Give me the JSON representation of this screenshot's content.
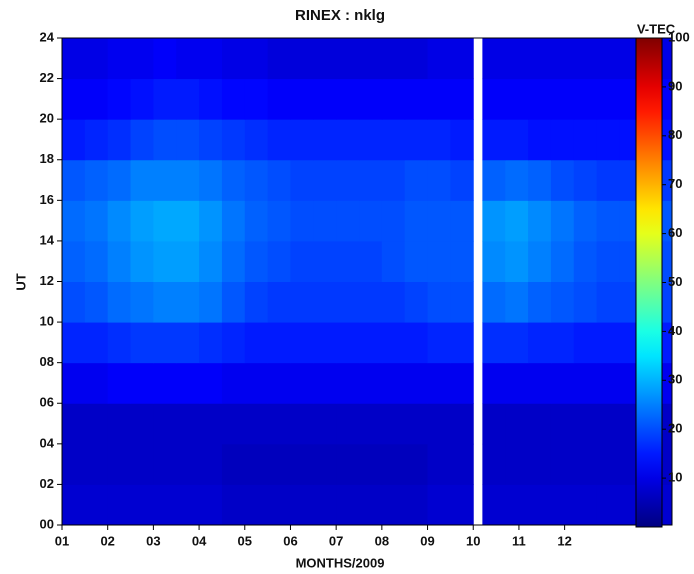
{
  "chart_data": {
    "type": "heatmap",
    "title": "RINEX : nklg",
    "x_label": "MONTHS/2009",
    "y_label": "UT",
    "colorbar_label": "V-TEC",
    "x_bins": [
      1,
      1.5,
      2,
      2.5,
      3,
      3.5,
      4,
      4.5,
      5,
      5.5,
      6,
      6.5,
      7,
      7.5,
      8,
      8.5,
      9,
      9.5,
      10,
      10.2,
      10.7,
      11.2,
      11.7,
      12.2,
      12.7,
      13.2,
      13.7,
      14.35
    ],
    "y_bins": [
      0,
      2,
      4,
      6,
      8,
      10,
      12,
      14,
      16,
      18,
      20,
      22,
      24
    ],
    "values": [
      [
        8,
        8,
        8,
        8,
        8,
        8,
        8,
        7,
        7,
        7,
        7,
        7,
        7,
        7,
        7,
        7,
        8,
        8,
        null,
        8,
        8,
        8,
        8,
        8,
        8,
        8,
        8
      ],
      [
        7,
        7,
        7,
        7,
        7,
        7,
        7,
        6,
        6,
        6,
        6,
        6,
        6,
        6,
        6,
        6,
        7,
        7,
        null,
        7,
        7,
        7,
        7,
        7,
        7,
        7,
        7
      ],
      [
        7,
        7,
        7,
        7,
        7,
        7,
        7,
        7,
        7,
        7,
        7,
        7,
        7,
        7,
        7,
        7,
        7,
        7,
        null,
        7,
        7,
        7,
        7,
        7,
        7,
        7,
        7
      ],
      [
        11,
        11,
        12,
        12,
        12,
        12,
        12,
        11,
        11,
        11,
        11,
        11,
        11,
        11,
        11,
        11,
        11,
        11,
        null,
        11,
        11,
        11,
        11,
        11,
        11,
        11,
        11
      ],
      [
        16,
        16,
        17,
        18,
        18,
        18,
        17,
        16,
        15,
        15,
        15,
        15,
        15,
        15,
        15,
        15,
        16,
        16,
        null,
        17,
        17,
        16,
        16,
        15,
        15,
        15,
        15
      ],
      [
        20,
        21,
        23,
        24,
        25,
        25,
        24,
        21,
        19,
        18,
        18,
        18,
        18,
        18,
        18,
        19,
        20,
        20,
        null,
        23,
        24,
        22,
        21,
        20,
        19,
        19,
        19
      ],
      [
        22,
        23,
        25,
        27,
        28,
        28,
        26,
        23,
        21,
        20,
        19,
        19,
        19,
        19,
        20,
        21,
        21,
        21,
        null,
        26,
        27,
        25,
        23,
        21,
        20,
        20,
        20
      ],
      [
        23,
        24,
        26,
        28,
        29,
        29,
        27,
        24,
        22,
        21,
        20,
        20,
        20,
        20,
        20,
        21,
        21,
        21,
        null,
        27,
        28,
        26,
        24,
        22,
        21,
        21,
        21
      ],
      [
        21,
        22,
        23,
        25,
        25,
        25,
        24,
        22,
        21,
        20,
        19,
        19,
        19,
        19,
        19,
        20,
        20,
        19,
        null,
        22,
        23,
        22,
        20,
        19,
        18,
        18,
        18
      ],
      [
        15,
        16,
        17,
        19,
        20,
        20,
        19,
        18,
        17,
        16,
        16,
        16,
        16,
        16,
        16,
        16,
        16,
        15,
        null,
        15,
        15,
        14,
        14,
        14,
        14,
        14,
        14
      ],
      [
        12,
        12,
        13,
        14,
        15,
        15,
        14,
        13,
        13,
        12,
        12,
        12,
        12,
        12,
        12,
        12,
        12,
        12,
        null,
        12,
        12,
        12,
        12,
        12,
        12,
        12,
        12
      ],
      [
        10,
        10,
        11,
        11,
        12,
        11,
        11,
        10,
        10,
        9,
        9,
        9,
        9,
        9,
        9,
        9,
        10,
        10,
        null,
        10,
        10,
        10,
        10,
        10,
        10,
        10,
        10
      ]
    ],
    "colormap": "jet",
    "xlim": [
      1,
      14.35
    ],
    "xticks": [
      {
        "value": 1,
        "label": "01"
      },
      {
        "value": 2,
        "label": "02"
      },
      {
        "value": 3,
        "label": "03"
      },
      {
        "value": 4,
        "label": "04"
      },
      {
        "value": 5,
        "label": "05"
      },
      {
        "value": 6,
        "label": "06"
      },
      {
        "value": 7,
        "label": "07"
      },
      {
        "value": 8,
        "label": "08"
      },
      {
        "value": 9,
        "label": "09"
      },
      10,
      11,
      12
    ],
    "ylim": [
      0,
      24
    ],
    "yticks": [
      {
        "value": 0,
        "label": "00"
      },
      {
        "value": 2,
        "label": "02"
      },
      {
        "value": 4,
        "label": "04"
      },
      {
        "value": 6,
        "label": "06"
      },
      {
        "value": 8,
        "label": "08"
      },
      10,
      12,
      14,
      16,
      18,
      20,
      22,
      24
    ],
    "clim": [
      0,
      100
    ],
    "cticks": [
      10,
      20,
      30,
      40,
      50,
      60,
      70,
      80,
      90,
      100
    ]
  }
}
